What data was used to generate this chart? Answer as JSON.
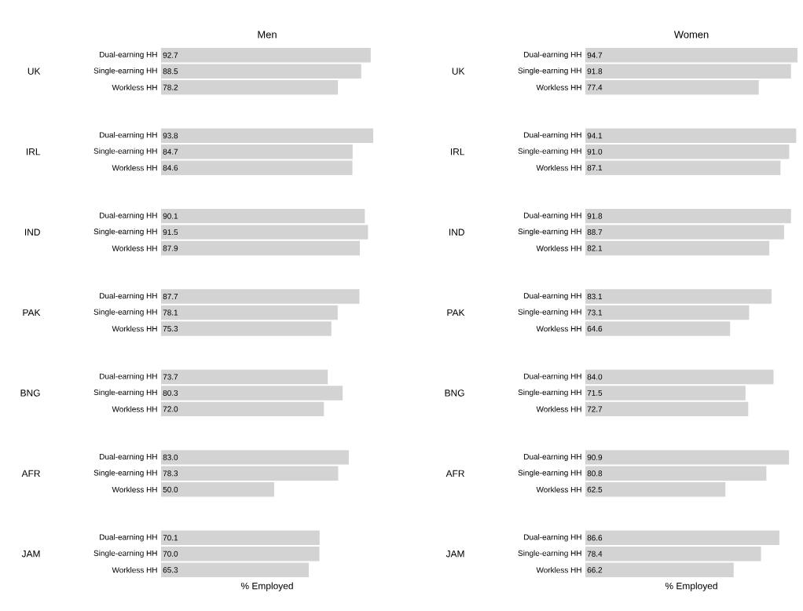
{
  "chart_data": [
    {
      "type": "bar",
      "orientation": "horizontal",
      "title": "Men",
      "xlabel": "% Employed",
      "color": "#d3d3d3",
      "categories": [
        "Dual-earning HH",
        "Single-earning HH",
        "Workless HH",
        null,
        null,
        "Dual-earning HH",
        "Single-earning HH",
        "Workless HH",
        null,
        null,
        "Dual-earning HH",
        "Single-earning HH",
        "Workless HH",
        null,
        null,
        "Dual-earning HH",
        "Single-earning HH",
        "Workless HH",
        null,
        null,
        "Dual-earning HH",
        "Single-earning HH",
        "Workless HH",
        null,
        null,
        "Dual-earning HH",
        "Single-earning HH",
        "Workless HH",
        null,
        null,
        "Dual-earning HH",
        "Single-earning HH",
        "Workless HH"
      ],
      "values": [
        92.7,
        88.5,
        78.2,
        null,
        null,
        93.8,
        84.7,
        84.6,
        null,
        null,
        90.1,
        91.5,
        87.9,
        null,
        null,
        87.7,
        78.1,
        75.3,
        null,
        null,
        73.7,
        80.3,
        72.0,
        null,
        null,
        83.0,
        78.3,
        50.0,
        null,
        null,
        70.1,
        70.0,
        65.3
      ],
      "value_labels": [
        "92.7",
        "88.5",
        "78.2",
        null,
        null,
        "93.8",
        "84.7",
        "84.6",
        null,
        null,
        "90.1",
        "91.5",
        "87.9",
        null,
        null,
        "87.7",
        "78.1",
        "75.3",
        null,
        null,
        "73.7",
        "80.3",
        "72.0",
        null,
        null,
        "83.0",
        "78.3",
        "50.0",
        null,
        null,
        "70.1",
        "70.0",
        "65.3"
      ],
      "annotations": [
        "UK",
        "IRL",
        "IND",
        "PAK",
        "BNG",
        "AFR",
        "JAM"
      ]
    },
    {
      "type": "bar",
      "orientation": "horizontal",
      "title": "Women",
      "xlabel": "% Employed",
      "color": "#d3d3d3",
      "categories": [
        "Dual-earning HH",
        "Single-earning HH",
        "Workless HH",
        null,
        null,
        "Dual-earning HH",
        "Single-earning HH",
        "Workless HH",
        null,
        null,
        "Dual-earning HH",
        "Single-earning HH",
        "Workless HH",
        null,
        null,
        "Dual-earning HH",
        "Single-earning HH",
        "Workless HH",
        null,
        null,
        "Dual-earning HH",
        "Single-earning HH",
        "Workless HH",
        null,
        null,
        "Dual-earning HH",
        "Single-earning HH",
        "Workless HH",
        null,
        null,
        "Dual-earning HH",
        "Single-earning HH",
        "Workless HH"
      ],
      "values": [
        94.7,
        91.8,
        77.4,
        null,
        null,
        94.1,
        91.0,
        87.1,
        null,
        null,
        91.8,
        88.7,
        82.1,
        null,
        null,
        83.1,
        73.1,
        64.6,
        null,
        null,
        84.0,
        71.5,
        72.7,
        null,
        null,
        90.9,
        80.8,
        62.5,
        null,
        null,
        86.6,
        78.4,
        66.2
      ],
      "value_labels": [
        "94.7",
        "91.8",
        "77.4",
        null,
        null,
        "94.1",
        "91.0",
        "87.1",
        null,
        null,
        "91.8",
        "88.7",
        "82.1",
        null,
        null,
        "83.1",
        "73.1",
        "64.6",
        null,
        null,
        "84.0",
        "71.5",
        "72.7",
        null,
        null,
        "90.9",
        "80.8",
        "62.5",
        null,
        null,
        "86.6",
        "78.4",
        "66.2"
      ],
      "annotations": [
        "UK",
        "IRL",
        "IND",
        "PAK",
        "BNG",
        "AFR",
        "JAM"
      ]
    }
  ]
}
